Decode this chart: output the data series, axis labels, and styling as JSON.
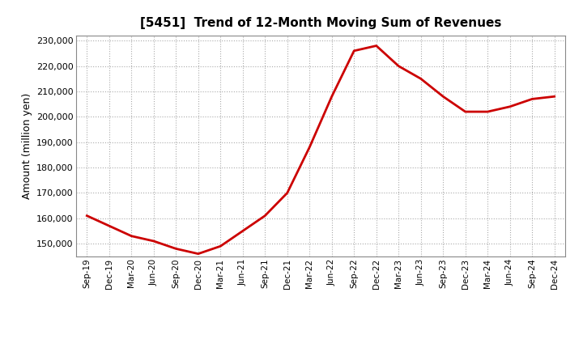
{
  "title": "[5451]  Trend of 12-Month Moving Sum of Revenues",
  "ylabel": "Amount (million yen)",
  "line_color": "#cc0000",
  "bg_color": "#ffffff",
  "plot_bg_color": "#ffffff",
  "grid_color": "#aaaaaa",
  "ylim": [
    145000,
    232000
  ],
  "yticks": [
    150000,
    160000,
    170000,
    180000,
    190000,
    200000,
    210000,
    220000,
    230000
  ],
  "x_labels": [
    "Sep-19",
    "Dec-19",
    "Mar-20",
    "Jun-20",
    "Sep-20",
    "Dec-20",
    "Mar-21",
    "Jun-21",
    "Sep-21",
    "Dec-21",
    "Mar-22",
    "Jun-22",
    "Sep-22",
    "Dec-22",
    "Mar-23",
    "Jun-23",
    "Sep-23",
    "Dec-23",
    "Mar-24",
    "Jun-24",
    "Sep-24",
    "Dec-24"
  ],
  "y_values": [
    161000,
    157000,
    153000,
    151000,
    148000,
    146000,
    149000,
    155000,
    161000,
    170000,
    188000,
    208000,
    226000,
    228000,
    220000,
    215000,
    208000,
    202000,
    202000,
    204000,
    207000,
    208000
  ]
}
